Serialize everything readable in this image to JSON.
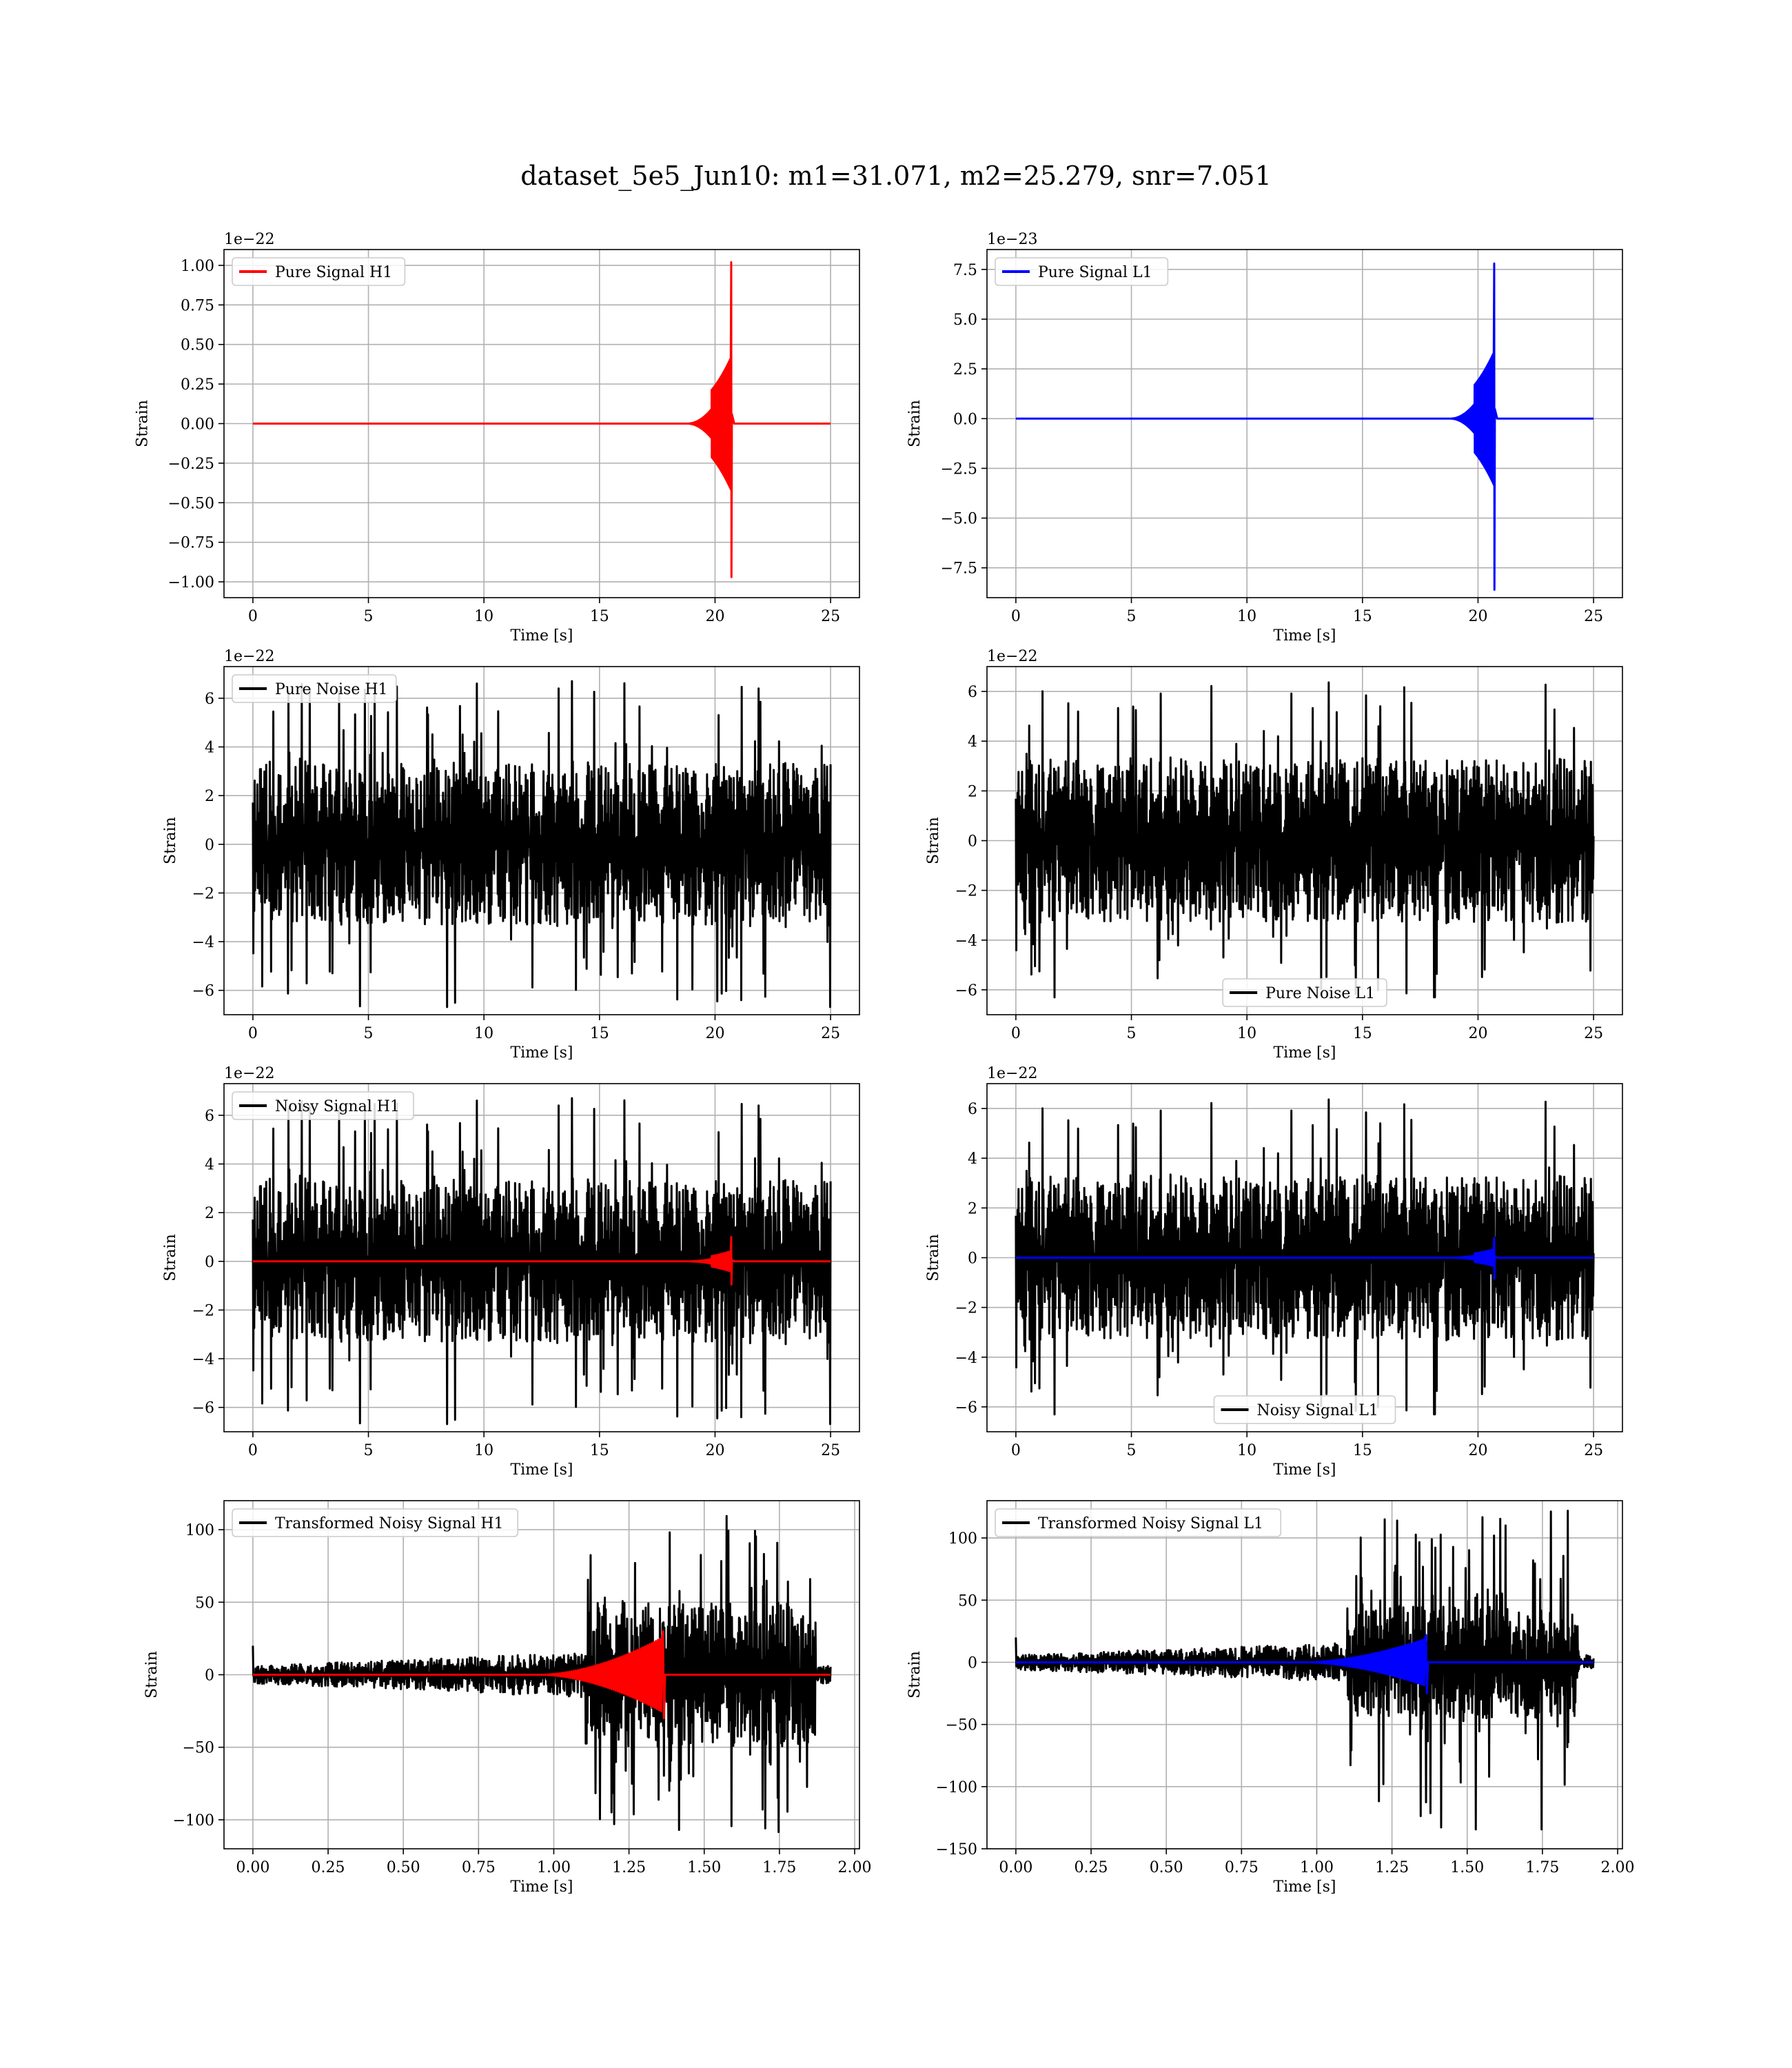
{
  "figure": {
    "title": "dataset_5e5_Jun10: m1=31.071, m2=25.279, snr=7.051"
  },
  "colors": {
    "h1_signal": "#ff0000",
    "l1_signal": "#0000ff",
    "noise": "#000000"
  },
  "chart_data": [
    {
      "type": "line",
      "legend": [
        "Pure Signal H1"
      ],
      "legend_position": "upper left",
      "xlabel": "Time [s]",
      "ylabel": "Strain",
      "offset_text": "1e−22",
      "xlim": [
        -1.25,
        26.25
      ],
      "ylim": [
        -1.1,
        1.1
      ],
      "grid": true,
      "xticks": [
        0,
        5,
        10,
        15,
        20,
        25
      ],
      "xtick_labels": [
        "0",
        "5",
        "10",
        "15",
        "20",
        "25"
      ],
      "yticks": [
        -1.0,
        -0.75,
        -0.5,
        -0.25,
        0.0,
        0.25,
        0.5,
        0.75,
        1.0
      ],
      "ytick_labels": [
        "−1.00",
        "−0.75",
        "−0.50",
        "−0.25",
        "0.00",
        "0.25",
        "0.50",
        "0.75",
        "1.00"
      ],
      "series": [
        {
          "name": "Pure Signal H1",
          "color": "#ff0000",
          "kind": "chirp",
          "x_start": 0,
          "x_end": 25,
          "t_merger": 20.7,
          "onset": 18.8,
          "peak_pos": 1.02,
          "peak_neg": -0.97,
          "pre_amp": 0.3,
          "decay": 0.08
        }
      ]
    },
    {
      "type": "line",
      "legend": [
        "Pure Signal L1"
      ],
      "legend_position": "upper left",
      "xlabel": "Time [s]",
      "ylabel": "Strain",
      "offset_text": "1e−23",
      "xlim": [
        -1.25,
        26.25
      ],
      "ylim": [
        -9.0,
        8.5
      ],
      "grid": true,
      "xticks": [
        0,
        5,
        10,
        15,
        20,
        25
      ],
      "xtick_labels": [
        "0",
        "5",
        "10",
        "15",
        "20",
        "25"
      ],
      "yticks": [
        -7.5,
        -5.0,
        -2.5,
        0.0,
        2.5,
        5.0,
        7.5
      ],
      "ytick_labels": [
        "−7.5",
        "−5.0",
        "−2.5",
        "0.0",
        "2.5",
        "5.0",
        "7.5"
      ],
      "series": [
        {
          "name": "Pure Signal L1",
          "color": "#0000ff",
          "kind": "chirp",
          "x_start": 0,
          "x_end": 25,
          "t_merger": 20.7,
          "onset": 18.8,
          "peak_pos": 7.8,
          "peak_neg": -8.6,
          "pre_amp": 2.4,
          "decay": 0.08
        }
      ]
    },
    {
      "type": "line",
      "legend": [
        "Pure Noise H1"
      ],
      "legend_position": "upper left",
      "xlabel": "Time [s]",
      "ylabel": "Strain",
      "offset_text": "1e−22",
      "xlim": [
        -1.25,
        26.25
      ],
      "ylim": [
        -7.0,
        7.3
      ],
      "grid": true,
      "xticks": [
        0,
        5,
        10,
        15,
        20,
        25
      ],
      "xtick_labels": [
        "0",
        "5",
        "10",
        "15",
        "20",
        "25"
      ],
      "yticks": [
        -6,
        -4,
        -2,
        0,
        2,
        4,
        6
      ],
      "ytick_labels": [
        "−6",
        "−4",
        "−2",
        "0",
        "2",
        "4",
        "6"
      ],
      "series": [
        {
          "name": "Pure Noise H1",
          "color": "#000000",
          "kind": "noise",
          "x_start": 0,
          "x_end": 25,
          "band": 3.3,
          "max": 6.8,
          "min": -6.4,
          "seed": 11
        }
      ]
    },
    {
      "type": "line",
      "legend": [
        "Pure Noise L1"
      ],
      "legend_position": "lower center",
      "xlabel": "Time [s]",
      "ylabel": "Strain",
      "offset_text": "1e−22",
      "xlim": [
        -1.25,
        26.25
      ],
      "ylim": [
        -7.0,
        7.0
      ],
      "grid": true,
      "xticks": [
        0,
        5,
        10,
        15,
        20,
        25
      ],
      "xtick_labels": [
        "0",
        "5",
        "10",
        "15",
        "20",
        "25"
      ],
      "yticks": [
        -6,
        -4,
        -2,
        0,
        2,
        4,
        6
      ],
      "ytick_labels": [
        "−6",
        "−4",
        "−2",
        "0",
        "2",
        "4",
        "6"
      ],
      "series": [
        {
          "name": "Pure Noise L1",
          "color": "#000000",
          "kind": "noise",
          "x_start": 0,
          "x_end": 25,
          "band": 3.3,
          "max": 6.5,
          "min": -6.3,
          "seed": 23
        }
      ]
    },
    {
      "type": "line",
      "legend": [
        "Noisy Signal H1"
      ],
      "legend_position": "upper left",
      "xlabel": "Time [s]",
      "ylabel": "Strain",
      "offset_text": "1e−22",
      "xlim": [
        -1.25,
        26.25
      ],
      "ylim": [
        -7.0,
        7.3
      ],
      "grid": true,
      "xticks": [
        0,
        5,
        10,
        15,
        20,
        25
      ],
      "xtick_labels": [
        "0",
        "5",
        "10",
        "15",
        "20",
        "25"
      ],
      "yticks": [
        -6,
        -4,
        -2,
        0,
        2,
        4,
        6
      ],
      "ytick_labels": [
        "−6",
        "−4",
        "−2",
        "0",
        "2",
        "4",
        "6"
      ],
      "series": [
        {
          "name": "Noisy Signal H1",
          "color": "#000000",
          "kind": "noise",
          "x_start": 0,
          "x_end": 25,
          "band": 3.3,
          "max": 6.8,
          "min": -6.4,
          "seed": 11
        },
        {
          "name": "",
          "color": "#ff0000",
          "kind": "chirp",
          "x_start": 0,
          "x_end": 25,
          "t_merger": 20.7,
          "onset": 18.8,
          "peak_pos": 1.0,
          "peak_neg": -0.95,
          "pre_amp": 0.3,
          "decay": 0.08
        }
      ]
    },
    {
      "type": "line",
      "legend": [
        "Noisy Signal L1"
      ],
      "legend_position": "lower center",
      "xlabel": "Time [s]",
      "ylabel": "Strain",
      "offset_text": "1e−22",
      "xlim": [
        -1.25,
        26.25
      ],
      "ylim": [
        -7.0,
        7.0
      ],
      "grid": true,
      "xticks": [
        0,
        5,
        10,
        15,
        20,
        25
      ],
      "xtick_labels": [
        "0",
        "5",
        "10",
        "15",
        "20",
        "25"
      ],
      "yticks": [
        -6,
        -4,
        -2,
        0,
        2,
        4,
        6
      ],
      "ytick_labels": [
        "−6",
        "−4",
        "−2",
        "0",
        "2",
        "4",
        "6"
      ],
      "series": [
        {
          "name": "Noisy Signal L1",
          "color": "#000000",
          "kind": "noise",
          "x_start": 0,
          "x_end": 25,
          "band": 3.3,
          "max": 6.5,
          "min": -6.3,
          "seed": 23
        },
        {
          "name": "",
          "color": "#0000ff",
          "kind": "chirp",
          "x_start": 0,
          "x_end": 25,
          "t_merger": 20.7,
          "onset": 18.8,
          "peak_pos": 0.8,
          "peak_neg": -0.85,
          "pre_amp": 0.24,
          "decay": 0.08
        }
      ]
    },
    {
      "type": "line",
      "legend": [
        "Transformed Noisy Signal H1"
      ],
      "legend_position": "upper left",
      "xlabel": "Time [s]",
      "ylabel": "Strain",
      "offset_text": "",
      "xlim": [
        -0.096,
        2.016
      ],
      "ylim": [
        -120,
        120
      ],
      "grid": true,
      "xticks": [
        0.0,
        0.25,
        0.5,
        0.75,
        1.0,
        1.25,
        1.5,
        1.75,
        2.0
      ],
      "xtick_labels": [
        "0.00",
        "0.25",
        "0.50",
        "0.75",
        "1.00",
        "1.25",
        "1.50",
        "1.75",
        "2.00"
      ],
      "yticks": [
        -100,
        -50,
        0,
        50,
        100
      ],
      "ytick_labels": [
        "−100",
        "−50",
        "0",
        "50",
        "100"
      ],
      "series": [
        {
          "name": "Transformed Noisy Signal H1",
          "color": "#000000",
          "kind": "whitened",
          "x_start": 0,
          "x_end": 1.92,
          "active_start": 1.1,
          "active_end": 1.87,
          "base": 6,
          "active_band": 50,
          "max": 110,
          "min": -110,
          "seed": 31
        },
        {
          "name": "",
          "color": "#ff0000",
          "kind": "wchirp",
          "x_start": 0,
          "x_end": 1.92,
          "t_merger": 1.36,
          "onset": 0.95,
          "peak_pos": 30,
          "peak_neg": -30
        }
      ]
    },
    {
      "type": "line",
      "legend": [
        "Transformed Noisy Signal L1"
      ],
      "legend_position": "upper left",
      "xlabel": "Time [s]",
      "ylabel": "Strain",
      "offset_text": "",
      "xlim": [
        -0.096,
        2.016
      ],
      "ylim": [
        -150,
        130
      ],
      "grid": true,
      "xticks": [
        0.0,
        0.25,
        0.5,
        0.75,
        1.0,
        1.25,
        1.5,
        1.75,
        2.0
      ],
      "xtick_labels": [
        "0.00",
        "0.25",
        "0.50",
        "0.75",
        "1.00",
        "1.25",
        "1.50",
        "1.75",
        "2.00"
      ],
      "yticks": [
        -150,
        -100,
        -50,
        0,
        50,
        100
      ],
      "ytick_labels": [
        "−150",
        "−100",
        "−50",
        "0",
        "50",
        "100"
      ],
      "series": [
        {
          "name": "Transformed Noisy Signal L1",
          "color": "#000000",
          "kind": "whitened",
          "x_start": 0,
          "x_end": 1.92,
          "active_start": 1.1,
          "active_end": 1.87,
          "base": 6,
          "active_band": 45,
          "max": 125,
          "min": -140,
          "seed": 47
        },
        {
          "name": "",
          "color": "#0000ff",
          "kind": "wchirp",
          "x_start": 0,
          "x_end": 1.92,
          "t_merger": 1.36,
          "onset": 0.95,
          "peak_pos": 22,
          "peak_neg": -25
        }
      ]
    }
  ]
}
